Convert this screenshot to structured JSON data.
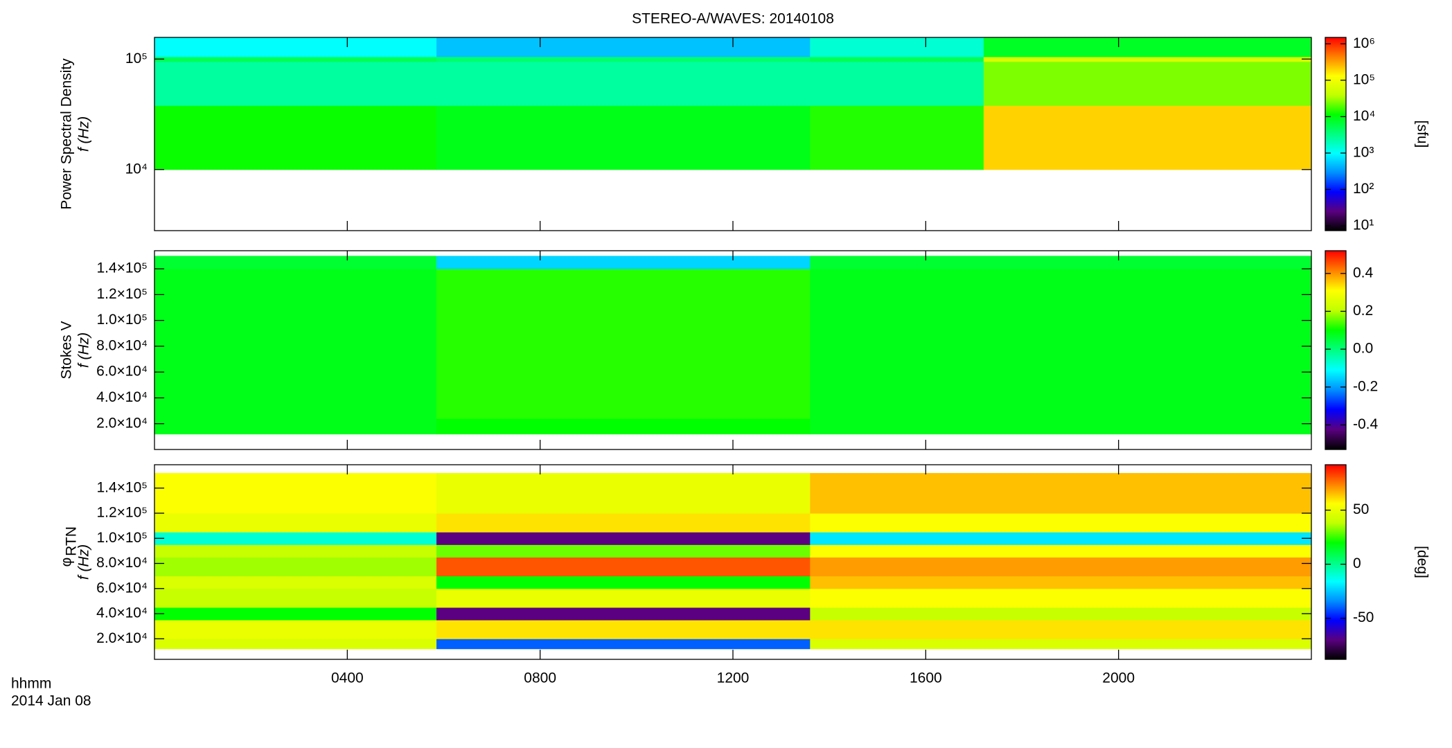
{
  "chart_data": [
    {
      "type": "heatmap",
      "title": "STEREO-A/WAVES: 20140108",
      "ylabel": [
        "Power Spectral Density",
        "f (Hz)"
      ],
      "xlim": [
        0,
        24
      ],
      "xticks": [
        4,
        8,
        12,
        16,
        20
      ],
      "ylog": true,
      "ylim": [
        2800,
        157000
      ],
      "yticks": [
        {
          "value": 10000,
          "label": "10⁴"
        },
        {
          "value": 100000,
          "label": "10⁵"
        }
      ],
      "x_edges": [
        0,
        5.85,
        13.6,
        17.2,
        24
      ],
      "y_edges": [
        10000,
        38000,
        95000,
        105000,
        157000
      ],
      "z": [
        [
          12000,
          9000,
          14000,
          200000
        ],
        [
          2500,
          2500,
          2500,
          25000
        ],
        [
          5000,
          4000,
          5000,
          60000
        ],
        [
          1000,
          500,
          1500,
          8000
        ]
      ],
      "zlog": true,
      "zlim": [
        7.4,
        1500000
      ],
      "zticks": [
        {
          "value": 10,
          "label": "10¹"
        },
        {
          "value": 100,
          "label": "10²"
        },
        {
          "value": 1000,
          "label": "10³"
        },
        {
          "value": 10000,
          "label": "10⁴"
        },
        {
          "value": 100000,
          "label": "10⁵"
        },
        {
          "value": 1000000,
          "label": "10⁶"
        }
      ],
      "zlabel": "[sfu]",
      "colormap": [
        "#000000",
        "#5a0080",
        "#0000ff",
        "#0090ff",
        "#00ffff",
        "#00ff80",
        "#00ff00",
        "#c0ff00",
        "#ffff00",
        "#ff8000",
        "#ff0000"
      ]
    },
    {
      "type": "heatmap",
      "ylabel": [
        "Stokes V",
        "f (Hz)"
      ],
      "xlim": [
        0,
        24
      ],
      "xticks": [
        4,
        8,
        12,
        16,
        20
      ],
      "ylog": false,
      "ylim": [
        0,
        154000
      ],
      "yticks": [
        {
          "value": 20000,
          "label": "2.0×10⁴"
        },
        {
          "value": 40000,
          "label": "4.0×10⁴"
        },
        {
          "value": 60000,
          "label": "6.0×10⁴"
        },
        {
          "value": 80000,
          "label": "8.0×10⁴"
        },
        {
          "value": 100000,
          "label": "1.0×10⁵"
        },
        {
          "value": 120000,
          "label": "1.2×10⁵"
        },
        {
          "value": 140000,
          "label": "1.4×10⁵"
        }
      ],
      "x_edges": [
        0,
        5.85,
        13.6,
        24
      ],
      "y_edges": [
        12000,
        24000,
        140000,
        150000
      ],
      "z": [
        [
          0.08,
          0.1,
          0.08
        ],
        [
          0.08,
          0.12,
          0.08
        ],
        [
          0.06,
          -0.15,
          0.06
        ]
      ],
      "zlog": false,
      "zlim": [
        -0.53,
        0.52
      ],
      "zticks": [
        -0.4,
        -0.2,
        {
          "value": 0,
          "label": "0.0"
        },
        0.2,
        0.4
      ],
      "colormap": [
        "#000000",
        "#5a0080",
        "#0000ff",
        "#0090ff",
        "#00ffff",
        "#00ff80",
        "#00ff00",
        "#c0ff00",
        "#ffff00",
        "#ff8000",
        "#ff0000"
      ]
    },
    {
      "type": "heatmap",
      "ylabel": [
        "φ",
        "f (Hz)"
      ],
      "ylabel_sub": "RTN",
      "xlim": [
        0,
        24
      ],
      "xticks": [
        {
          "value": 4,
          "label": "0400"
        },
        {
          "value": 8,
          "label": "0800"
        },
        {
          "value": 12,
          "label": "1200"
        },
        {
          "value": 16,
          "label": "1600"
        },
        {
          "value": 20,
          "label": "2000"
        }
      ],
      "xlabel": "hhmm",
      "date": "2014 Jan 08",
      "ylog": false,
      "ylim": [
        3600,
        158600
      ],
      "yticks": [
        {
          "value": 20000,
          "label": "2.0×10⁴"
        },
        {
          "value": 40000,
          "label": "4.0×10⁴"
        },
        {
          "value": 60000,
          "label": "6.0×10⁴"
        },
        {
          "value": 80000,
          "label": "8.0×10⁴"
        },
        {
          "value": 100000,
          "label": "1.0×10⁵"
        },
        {
          "value": 120000,
          "label": "1.2×10⁵"
        },
        {
          "value": 140000,
          "label": "1.4×10⁵"
        }
      ],
      "x_edges": [
        0,
        5.85,
        13.6,
        24
      ],
      "y_edges": [
        12000,
        20000,
        35000,
        45000,
        60000,
        70000,
        85000,
        95000,
        105000,
        120000,
        152000
      ],
      "z": [
        [
          45,
          -40,
          45
        ],
        [
          50,
          60,
          60
        ],
        [
          20,
          -70,
          40
        ],
        [
          40,
          50,
          55
        ],
        [
          45,
          20,
          65
        ],
        [
          35,
          80,
          70
        ],
        [
          40,
          30,
          55
        ],
        [
          -10,
          -70,
          -20
        ],
        [
          50,
          60,
          55
        ],
        [
          55,
          50,
          65
        ]
      ],
      "zlog": false,
      "zlim": [
        -88,
        92
      ],
      "zticks": [
        -50,
        0,
        50
      ],
      "zlabel": "[deg]",
      "colormap": [
        "#000000",
        "#5a0080",
        "#0000ff",
        "#0090ff",
        "#00ffff",
        "#00ff80",
        "#00ff00",
        "#c0ff00",
        "#ffff00",
        "#ff8000",
        "#ff0000"
      ]
    }
  ]
}
